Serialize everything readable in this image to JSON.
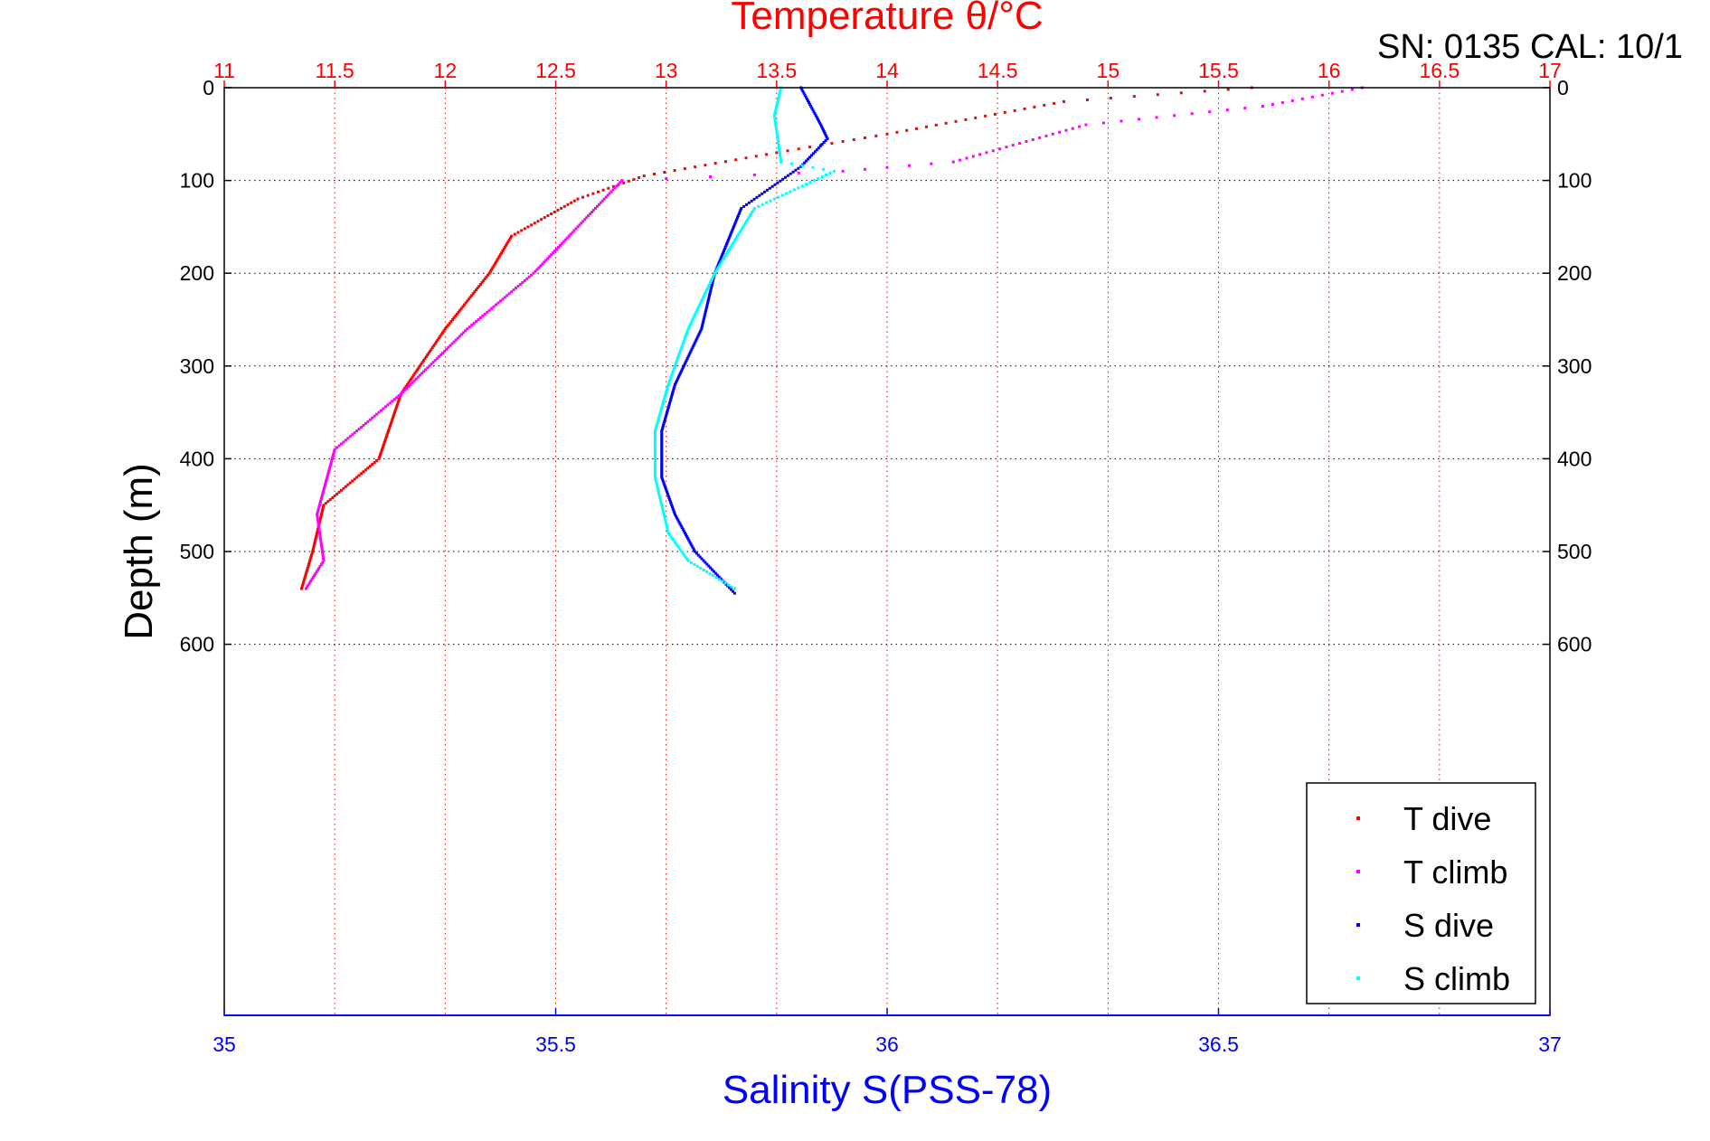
{
  "chart_data": {
    "type": "scatter",
    "title": "Temperature θ/°C",
    "annotation": "SN: 0135  CAL: 10/1",
    "xlabel_bottom": "Salinity S(PSS-78)",
    "xlabel_top": "Temperature θ/°C",
    "ylabel": "Depth (m)",
    "x_bottom_lim": [
      35,
      37
    ],
    "x_top_lim": [
      11,
      17
    ],
    "ylim": [
      0,
      1000
    ],
    "y_reversed": true,
    "grid": true,
    "legend_position": "bottom-right",
    "x_bottom_ticks": [
      "35",
      "35.5",
      "36",
      "36.5",
      "37"
    ],
    "x_top_ticks": [
      "11",
      "11.5",
      "12",
      "12.5",
      "13",
      "13.5",
      "14",
      "14.5",
      "15",
      "15.5",
      "16",
      "16.5",
      "17"
    ],
    "y_ticks": [
      "0",
      "100",
      "200",
      "300",
      "400",
      "500",
      "600"
    ],
    "colors": {
      "t_dive": "#ff0000",
      "t_climb": "#ff00ff",
      "s_dive": "#0000ff",
      "s_climb": "#00ffff",
      "grid_top": "#ff0000",
      "grid_y": "#000000"
    },
    "series": [
      {
        "name": "T dive",
        "axis": "top",
        "points": [
          [
            15.65,
            0
          ],
          [
            14.8,
            15
          ],
          [
            14.0,
            50
          ],
          [
            13.5,
            70
          ],
          [
            12.9,
            95
          ],
          [
            12.6,
            120
          ],
          [
            12.3,
            160
          ],
          [
            12.2,
            200
          ],
          [
            12.0,
            260
          ],
          [
            11.8,
            330
          ],
          [
            11.7,
            400
          ],
          [
            11.45,
            450
          ],
          [
            11.4,
            500
          ],
          [
            11.35,
            540
          ]
        ]
      },
      {
        "name": "T climb",
        "axis": "top",
        "points": [
          [
            16.15,
            0
          ],
          [
            15.7,
            20
          ],
          [
            14.9,
            40
          ],
          [
            14.3,
            80
          ],
          [
            13.8,
            90
          ],
          [
            12.8,
            100
          ],
          [
            12.6,
            150
          ],
          [
            12.4,
            200
          ],
          [
            12.1,
            260
          ],
          [
            11.8,
            330
          ],
          [
            11.5,
            390
          ],
          [
            11.42,
            460
          ],
          [
            11.45,
            510
          ],
          [
            11.37,
            540
          ]
        ]
      },
      {
        "name": "S dive",
        "axis": "bottom",
        "points": [
          [
            35.87,
            0
          ],
          [
            35.9,
            40
          ],
          [
            35.91,
            55
          ],
          [
            35.87,
            85
          ],
          [
            35.78,
            130
          ],
          [
            35.74,
            200
          ],
          [
            35.72,
            260
          ],
          [
            35.68,
            320
          ],
          [
            35.66,
            370
          ],
          [
            35.66,
            420
          ],
          [
            35.68,
            460
          ],
          [
            35.71,
            500
          ],
          [
            35.77,
            545
          ]
        ]
      },
      {
        "name": "S climb",
        "axis": "bottom",
        "points": [
          [
            35.84,
            0
          ],
          [
            35.83,
            30
          ],
          [
            35.84,
            80
          ],
          [
            35.92,
            90
          ],
          [
            35.8,
            130
          ],
          [
            35.74,
            200
          ],
          [
            35.7,
            260
          ],
          [
            35.67,
            320
          ],
          [
            35.65,
            370
          ],
          [
            35.65,
            420
          ],
          [
            35.67,
            480
          ],
          [
            35.7,
            510
          ],
          [
            35.77,
            540
          ]
        ]
      }
    ]
  }
}
